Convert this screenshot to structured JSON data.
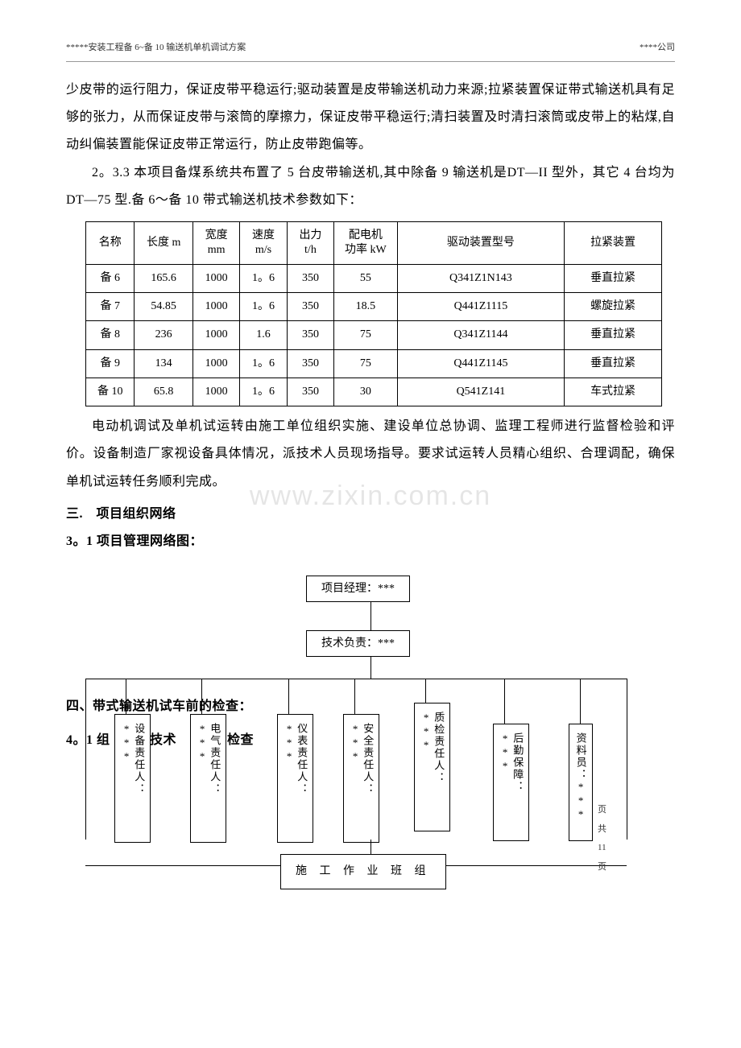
{
  "header": {
    "left": "*****安装工程备 6~备 10 输送机单机调试方案",
    "right": "****公司"
  },
  "paragraphs": {
    "p1": "少皮带的运行阻力，保证皮带平稳运行;驱动装置是皮带输送机动力来源;拉紧装置保证带式输送机具有足够的张力，从而保证皮带与滚筒的摩擦力，保证皮带平稳运行;清扫装置及时清扫滚筒或皮带上的粘煤,自动纠偏装置能保证皮带正常运行，防止皮带跑偏等。",
    "p2": "2。3.3 本项目备煤系统共布置了 5 台皮带输送机,其中除备 9 输送机是DT—II 型外，其它 4 台均为 DT—75 型.备 6～备 10 带式输送机技术参数如下：",
    "p3": "电动机调试及单机试运转由施工单位组织实施、建设单位总协调、监理工程师进行监督检验和评价。设备制造厂家视设备具体情况，派技术人员现场指导。要求试运转人员精心组织、合理调配，确保单机试运转任务顺利完成。"
  },
  "section3_title": "三.　项目组织网络",
  "section3_sub": "3。1 项目管理网络图：",
  "section4_label": "四、带式输送机试车前的检查：",
  "section4_sub_a": "4。1 组",
  "section4_sub_b": "技术",
  "section4_sub_c": "检查",
  "table": {
    "columns": [
      "名称",
      "长度 m",
      "宽度\nmm",
      "速度\nm/s",
      "出力\nt/h",
      "配电机\n功率 kW",
      "驱动装置型号",
      "拉紧装置"
    ],
    "col_widths": [
      "60",
      "72",
      "58",
      "58",
      "58",
      "78",
      "206",
      "120"
    ],
    "rows": [
      [
        "备 6",
        "165.6",
        "1000",
        "1。6",
        "350",
        "55",
        "Q341Z1N143",
        "垂直拉紧"
      ],
      [
        "备 7",
        "54.85",
        "1000",
        "1。6",
        "350",
        "18.5",
        "Q441Z1115",
        "螺旋拉紧"
      ],
      [
        "备 8",
        "236",
        "1000",
        "1.6",
        "350",
        "75",
        "Q341Z1144",
        "垂直拉紧"
      ],
      [
        "备 9",
        "134",
        "1000",
        "1。6",
        "350",
        "75",
        "Q441Z1145",
        "垂直拉紧"
      ],
      [
        "备 10",
        "65.8",
        "1000",
        "1。6",
        "350",
        "30",
        "Q541Z141",
        "车式拉紧"
      ]
    ]
  },
  "watermark_text": "www.zixin.com.cn",
  "org": {
    "top": "项目经理：***",
    "mid": "技术负责：***",
    "leaves": [
      "设备责任人：***",
      "电气责任人：***",
      "仪表责任人：***",
      "安全责任人：***",
      "质检责任人：***",
      "后勤保障：***",
      "资料员：***"
    ],
    "bottom": "施 工 作 业 班 组"
  },
  "footer_right": "页共 11 页",
  "colors": {
    "text": "#000000",
    "background": "#ffffff",
    "border": "#000000",
    "header_rule": "#999999",
    "watermark": "rgba(0,0,0,0.10)"
  },
  "typography": {
    "body_fontsize_pt": 12,
    "table_fontsize_pt": 10.5,
    "header_fontsize_pt": 8,
    "font_family": "SimSun"
  }
}
